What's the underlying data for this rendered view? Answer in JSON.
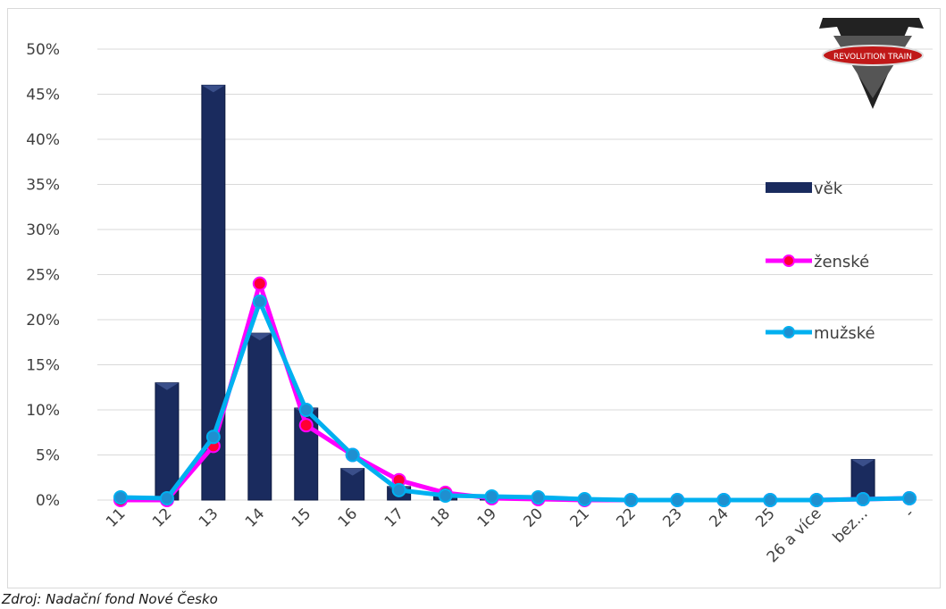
{
  "source_note": "Zdroj: Nadační fond Nové Česko",
  "logo": {
    "text": "REVOLUTION TRAIN"
  },
  "chart_data": {
    "type": "bar",
    "categories": [
      "11",
      "12",
      "13",
      "14",
      "15",
      "16",
      "17",
      "18",
      "19",
      "20",
      "21",
      "22",
      "23",
      "24",
      "25",
      "26 a více",
      "bez...",
      "-"
    ],
    "ylim": [
      0,
      50
    ],
    "yticks": [
      "0%",
      "5%",
      "10%",
      "15%",
      "20%",
      "25%",
      "30%",
      "35%",
      "40%",
      "45%",
      "50%"
    ],
    "grid": true,
    "legend_position": "right",
    "series": [
      {
        "name": "věk",
        "kind": "bar",
        "color": "#1a2b5e",
        "values": [
          0,
          13,
          46,
          18.5,
          10.2,
          3.5,
          1.5,
          0.5,
          0.2,
          0,
          0,
          0,
          0,
          0,
          0,
          0,
          4.5,
          0
        ]
      },
      {
        "name": "ženské",
        "kind": "line",
        "color": "#ff00ff",
        "marker_color": "#ff0033",
        "values": [
          0,
          0,
          6,
          24,
          8.3,
          5,
          2.2,
          0.8,
          0.2,
          0.1,
          0,
          0,
          0,
          0,
          0,
          0,
          0.1,
          0.2
        ]
      },
      {
        "name": "mužské",
        "kind": "line",
        "color": "#00b0f0",
        "marker_color": "#1f8fd0",
        "values": [
          0.3,
          0.2,
          7,
          22,
          10,
          5,
          1.1,
          0.5,
          0.4,
          0.3,
          0.1,
          0,
          0,
          0,
          0,
          0,
          0.1,
          0.2
        ]
      }
    ]
  }
}
